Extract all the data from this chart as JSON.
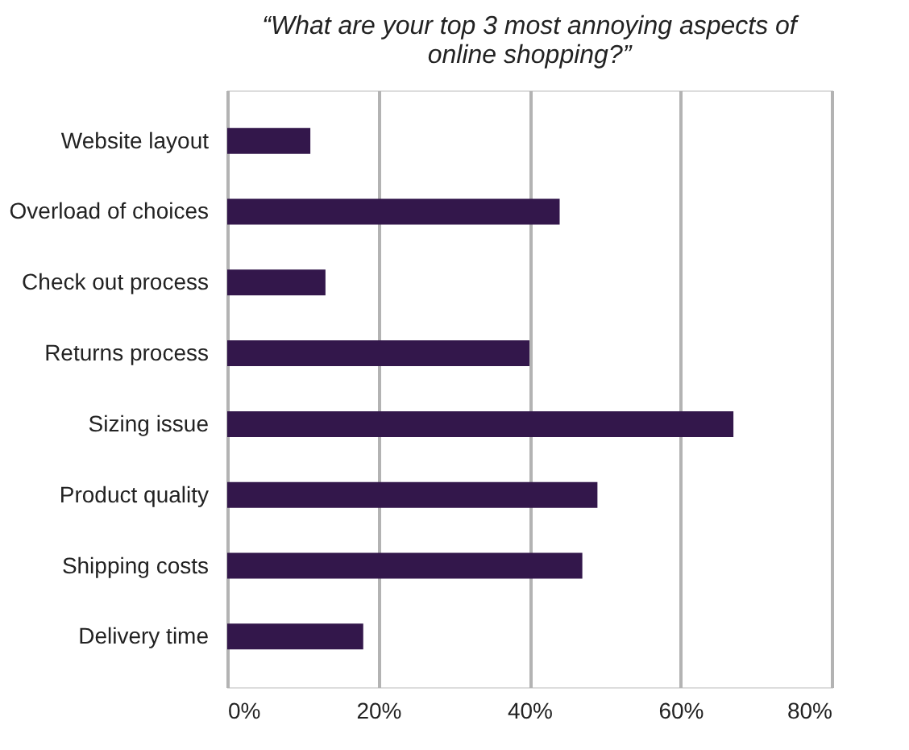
{
  "chart_data": {
    "type": "bar",
    "orientation": "horizontal",
    "title": "“What are your top 3 most annoying aspects of\nonline shopping?”",
    "categories": [
      "Website layout",
      "Overload of choices",
      "Check out process",
      "Returns process",
      "Sizing issue",
      "Product quality",
      "Shipping costs",
      "Delivery time"
    ],
    "values": [
      11,
      44,
      13,
      40,
      67,
      49,
      47,
      18
    ],
    "color": "#33174b",
    "xlim": [
      0,
      80
    ],
    "xticks": [
      {
        "value": 0,
        "label": "0%"
      },
      {
        "value": 20,
        "label": "20%"
      },
      {
        "value": 40,
        "label": "40%"
      },
      {
        "value": 60,
        "label": "60%"
      },
      {
        "value": 80,
        "label": "80%"
      }
    ],
    "grid": "x"
  }
}
